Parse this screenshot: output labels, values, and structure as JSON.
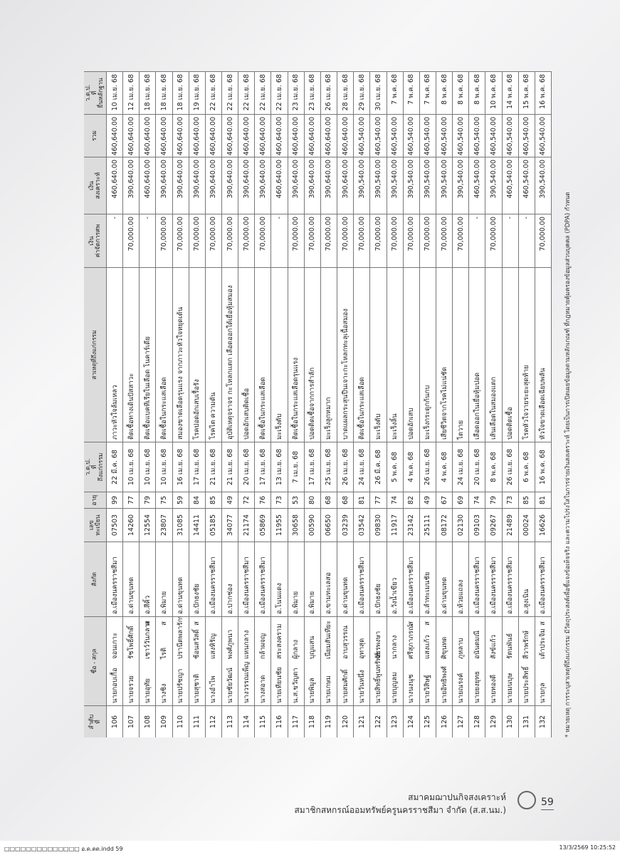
{
  "table": {
    "headers": [
      "ลำดับ\nที่",
      "ชื่อ - สกุล",
      "สังกัด",
      "เลข\nทะเบียน",
      "อายุ",
      "ว.ด.ป.\nที่\nถึงแก่กรรม",
      "สาเหตุที่ถึงแก่กรรม",
      "เงิน\nค่าจัดการศพ",
      "เงิน\nสงเคราะห์",
      "รวม",
      "ว.ด.ป.\nที่\nยื่นหลักฐาน"
    ],
    "rows": [
      [
        "106",
        "นายกอบเกื้อ",
        "จอนเกาะ",
        null,
        "อ.เมืองนครราชสีมา",
        "07503",
        "99",
        "22 มี.ค. 68",
        "ภาวะหัวใจล้มเหลว",
        "-",
        "460,640.00",
        "460,640.00",
        "10 เม.ย. 68"
      ],
      [
        "107",
        "นายจรวย",
        "รัชโพธิ์ศักดิ์",
        null,
        "อ.ด่านขุนทด",
        "14260",
        "77",
        "10 เม.ย. 68",
        "ติดเชื้อทางเดินปัสสาวะ",
        "70,000.00",
        "390,640.00",
        "460,640.00",
        "12 เม.ย. 68"
      ],
      [
        "108",
        "นายอุทัย",
        "เชาว์วันกลาง",
        "ส",
        "อ.สีคิ้ว",
        "12554",
        "79",
        "10 เม.ย. 68",
        "ติดเชื้อแบคทีเรียในเลือด โนคาร์เดีย",
        "-",
        "460,640.00",
        "460,640.00",
        "18 เม.ย. 68"
      ],
      [
        "109",
        "นางชิง",
        "ไรติ",
        "ส",
        "อ.พิมาย",
        "23807",
        "75",
        "10 เม.ย. 68",
        "ติดเชื้อในกระแสเลือด",
        "70,000.00",
        "390,640.00",
        "460,640.00",
        "18 เม.ย. 68"
      ],
      [
        "110",
        "นายปรัชญา",
        "ปรานีตพลารักษ์",
        null,
        "อ.ด่านขุนทด",
        "31085",
        "59",
        "16 เม.ย. 68",
        "สมองขาดเลือดรุนแรง จากภาวะหัวใจหยุดเต้น",
        "70,000.00",
        "390,640.00",
        "460,640.00",
        "18 เม.ย. 68"
      ],
      [
        "111",
        "นายสุชาติ",
        "ช้อนสวัสดิ์",
        "ส",
        "อ.ปักธงชัย",
        "14411",
        "84",
        "17 เม.ย. 68",
        "โรคปอดอักเสบเรื้อรัง",
        "70,000.00",
        "390,640.00",
        "460,640.00",
        "19 เม.ย. 68"
      ],
      [
        "112",
        "นางอำไพ",
        "แสงหิรัญ",
        null,
        "อ.เมืองนครราชสีมา",
        "05185",
        "85",
        "21 เม.ย. 68",
        "โรคไต ความดัน",
        "70,000.00",
        "390,640.00",
        "460,640.00",
        "22 เม.ย. 68"
      ],
      [
        "113",
        "นายชัยวัฒน์",
        "พงศ์ภูพนา",
        null,
        "อ.ปากช่อง",
        "34077",
        "49",
        "21 เม.ย. 68",
        "อุบัติเหตุจราจร กะโหลกแตก เลือดออกใต้เยื่อหุ้มสมอง",
        "70,000.00",
        "390,640.00",
        "460,640.00",
        "22 เม.ย. 68"
      ],
      [
        "114",
        "นางวรรณเพ็ญ",
        "แหนกลาง",
        null,
        "อ.เมืองนครราชสีมา",
        "21174",
        "72",
        "20 เม.ย. 68",
        "ปอดอักเสบติดเชื้อ",
        "70,000.00",
        "390,640.00",
        "460,640.00",
        "22 เม.ย. 68"
      ],
      [
        "115",
        "นางสอาด",
        "กล้าผจญ",
        null,
        "อ.เมืองนครราชสีมา",
        "05869",
        "76",
        "17 เม.ย. 68",
        "ติดเชื้อในกระแสเลือด",
        "70,000.00",
        "390,640.00",
        "460,640.00",
        "22 เม.ย. 68"
      ],
      [
        "116",
        "นายเทียนชัย",
        "สระสงคราม",
        null,
        "อ.โนนแดง",
        "11955",
        "73",
        "13 เม.ย. 68",
        "มะเร็งตับ",
        "-",
        "460,640.00",
        "460,640.00",
        "22 เม.ย. 68"
      ],
      [
        "117",
        "น.ส.ขวัญตา",
        "ผู้กลาง",
        null,
        "อ.พิมาย",
        "30658",
        "53",
        "7 เม.ย. 68",
        "ติดเชื้อในกระแสเลือดรุนแรง",
        "70,000.00",
        "390,640.00",
        "460,640.00",
        "23 เม.ย. 68"
      ],
      [
        "118",
        "นายพิมูล",
        "บุญแสน",
        null,
        "อ.พิมาย",
        "00590",
        "80",
        "17 เม.ย. 68",
        "ปอดติดเชื้อจากการสำลัก",
        "70,000.00",
        "390,640.00",
        "460,640.00",
        "23 เม.ย. 68"
      ],
      [
        "119",
        "นายเกษม",
        "เนียมสันเทียะ",
        null,
        "อ.ขามทะเลสอ",
        "06650",
        "68",
        "25 เม.ย. 68",
        "มะเร็งลูกหมาก",
        "70,000.00",
        "390,640.00",
        "460,640.00",
        "26 เม.ย. 68"
      ],
      [
        "120",
        "นายสมศักดิ์",
        "อาบสุวรรณ",
        null,
        "อ.ด่านขุนทด",
        "03239",
        "68",
        "26 เม.ย. 68",
        "บาดแผลกระสุนปืนเจาะกะโหลกทะลุเนื้อสมอง",
        "70,000.00",
        "390,640.00",
        "460,640.00",
        "28 เม.ย. 68"
      ],
      [
        "121",
        "นายวันหนึ่ง",
        "อุทาสุด",
        null,
        "อ.เมืองนครราชสีมา",
        "03542",
        "81",
        "24 เม.ย. 68",
        "ติดเชื้อในกระแสเลือด",
        "70,000.00",
        "390,540.00",
        "460,540.00",
        "29 เม.ย. 68"
      ],
      [
        "122",
        "นายสิทธิ์พูนทรัพย์",
        "วัชรพงษา",
        null,
        "อ.ปักธงชัย",
        "09830",
        "77",
        "26 มี.ค. 68",
        "มะเร็งตับ",
        "70,000.00",
        "390,540.00",
        "460,540.00",
        "30 เม.ย. 68"
      ],
      [
        "123",
        "นายบุญลม",
        "นากลาง",
        null,
        "อ.วังน้ำเขียว",
        "11917",
        "74",
        "5 พ.ค. 68",
        "มะเร็งลิ้น",
        "70,000.00",
        "390,540.00",
        "460,540.00",
        "7 พ.ค. 68"
      ],
      [
        "124",
        "นางนงนุช",
        "ศรีสุภาภรณ์",
        "ส",
        "อ.เมืองนครราชสีมา",
        "23142",
        "82",
        "4 พ.ค. 68",
        "ปอดอักเสบ",
        "70,000.00",
        "390,540.00",
        "460,540.00",
        "7 พ.ค. 68"
      ],
      [
        "125",
        "นายวิสิษฐ์",
        "แสงแก้ว",
        "ส",
        "อ.ลำทะเมนชัย",
        "25111",
        "49",
        "26 เม.ย. 68",
        "มะเร็งกระดูกก้นกบ",
        "70,000.00",
        "390,540.00",
        "460,540.00",
        "7 พ.ค. 68"
      ],
      [
        "126",
        "นายอิทธิพงศ์",
        "ศิขุนทด",
        null,
        "อ.ด่านขุนทด",
        "08172",
        "67",
        "4 พ.ค. 68",
        "เสียชีวิตจากโรคไม่แน่ชัด",
        "70,000.00",
        "390,540.00",
        "460,540.00",
        "8 พ.ค. 68"
      ],
      [
        "127",
        "นายณรงค์",
        "ภูหลาบ",
        null,
        "อ.ห้วยแถลง",
        "02130",
        "69",
        "24 เม.ย. 68",
        "ไตวาย",
        "70,000.00",
        "390,540.00",
        "460,540.00",
        "8 พ.ค. 68"
      ],
      [
        "128",
        "นายยงยุทธ",
        "อนันตมณี",
        null,
        "อ.เมืองนครราชสีมา",
        "09103",
        "74",
        "20 เม.ย. 68",
        "เลือดออกในเยื่อหุ้มปอด",
        "-",
        "460,540.00",
        "460,540.00",
        "8 พ.ค. 68"
      ],
      [
        "129",
        "นายทองดี",
        "สังข์แก้ว",
        null,
        "อ.เมืองนครราชสีมา",
        "09267",
        "79",
        "8 พ.ค. 68",
        "เส้นเลือดในสมองแตก",
        "70,000.00",
        "390,540.00",
        "460,540.00",
        "10 พ.ค. 68"
      ],
      [
        "130",
        "นายมนบุษ",
        "รัตนพันธ์",
        null,
        "อ.เมืองนครราชสีมา",
        "21489",
        "73",
        "26 เม.ย. 68",
        "ปอดติดเชื้อ",
        "-",
        "460,540.00",
        "460,540.00",
        "14 พ.ค. 68"
      ],
      [
        "131",
        "นายประสิทธิ์",
        "สีวาพรักษ์",
        null,
        "อ.สูงเนิน",
        "00024",
        "85",
        "6 พ.ค. 68",
        "โรคหัวใจวายระยะสุดท้าย",
        "-",
        "460,540.00",
        "460,540.00",
        "15 พ.ค. 68"
      ],
      [
        "132",
        "นายกุล",
        "เต้าประจิม",
        "ส",
        "อ.เมืองนครราชสีมา",
        "16626",
        "81",
        "16 พ.ค. 68",
        "หัวใจขาดเลือดเฉียบพลัน",
        "70,000.00",
        "390,540.00",
        "460,540.00",
        "16 พ.ค. 68"
      ]
    ]
  },
  "note": "* หมายเหตุ การระบุสาเหตุที่ถึงแก่กรรม มีวัตถุประสงค์เพื่อชี้แจงข้อเท็จจริง และความโปร่งใสในการจ่ายเงินสงเคราะห์ โดยเป็นการเปิดเผยข้อมูลตามหลักเกณฑ์ ที่กฎหมายคุ้มครองข้อมูลส่วนบุคคล (PDPA) กำหนด",
  "footer": {
    "line1": "สมาคมฌาปนกิจสงเคราะห์",
    "line2": "สมาชิกสหกรณ์ออมทรัพย์ครูนครราชสีมา จำกัด (ส.ส.นม.)",
    "page": "59"
  },
  "slug": {
    "file": "□□□□□□□□□□□□□□ อ.ด.ดด.indd 59",
    "timestamp": "13/3/2569 10:25:52"
  }
}
